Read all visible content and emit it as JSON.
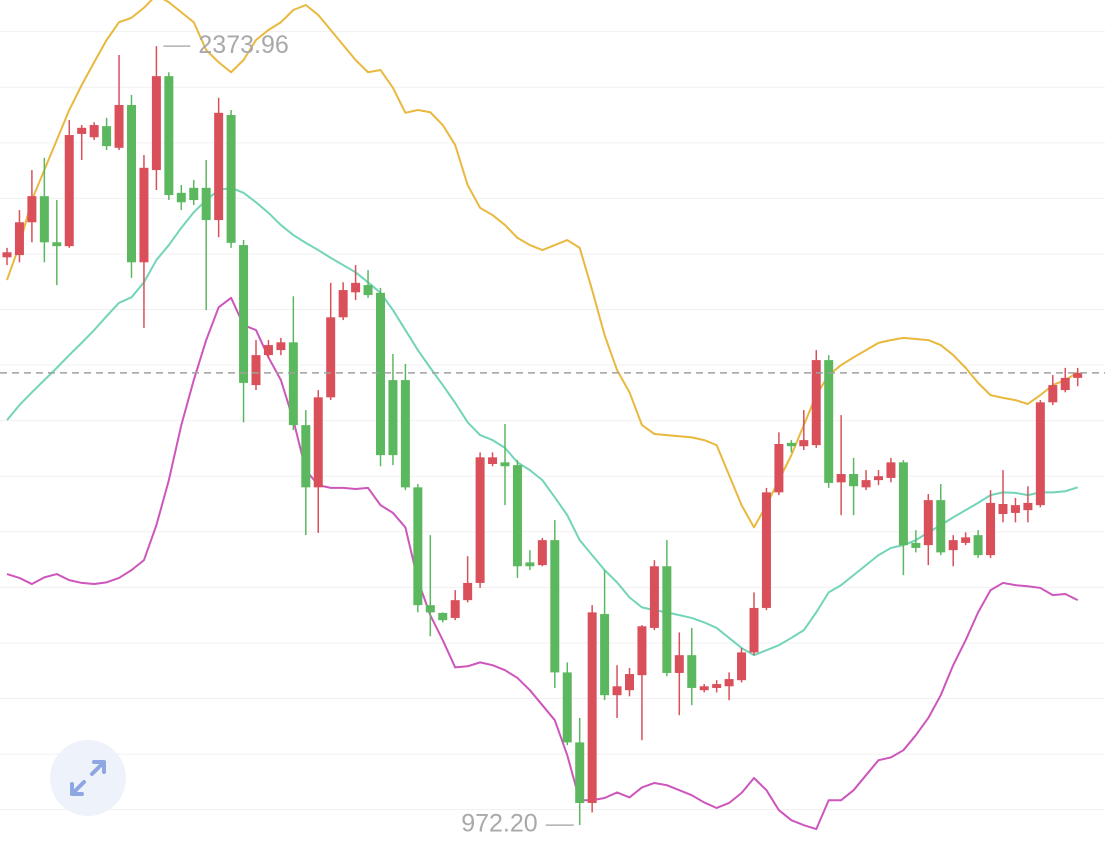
{
  "chart_data": {
    "type": "candlestick",
    "up_color": "#d9505a",
    "down_color": "#5cb85f",
    "ylim": [
      913,
      2457
    ],
    "gridlines": [
      1000,
      1100,
      1200,
      1300,
      1400,
      1500,
      1600,
      1700,
      1800,
      1900,
      2000,
      2100,
      2200,
      2300,
      2400
    ],
    "open": [
      1994,
      1998,
      2057,
      2104,
      2021,
      2014,
      2216,
      2210,
      2230,
      2191,
      2268,
      1985,
      2151,
      2320,
      2110,
      2119,
      2119,
      2061,
      2250,
      2016,
      1764,
      1818,
      1827,
      1841,
      1692,
      1580,
      1742,
      1886,
      1931,
      1944,
      1930,
      1773,
      1773,
      1580,
      1368,
      1354,
      1345,
      1377,
      1408,
      1622,
      1625,
      1620,
      1445,
      1440,
      1485,
      1247,
      1121,
      1012,
      1352,
      1206,
      1215,
      1242,
      1327,
      1438,
      1246,
      1278,
      1215,
      1219,
      1222,
      1233,
      1283,
      1363,
      1571,
      1660,
      1654,
      1656,
      1809,
      1589,
      1604,
      1580,
      1593,
      1597,
      1625,
      1480,
      1476,
      1557,
      1467,
      1480,
      1494,
      1458,
      1532,
      1534,
      1539,
      1548,
      1733,
      1755,
      1777
    ],
    "high": [
      2011,
      2079,
      2151,
      2173,
      2097,
      2241,
      2232,
      2237,
      2245,
      2358,
      2286,
      2178,
      2373.96,
      2327,
      2124,
      2133,
      2169,
      2281,
      2259,
      2025,
      1845,
      1845,
      1849,
      1924,
      1719,
      1755,
      1948,
      1949,
      1980,
      1971,
      1939,
      1820,
      1802,
      1586,
      1494,
      1355,
      1395,
      1456,
      1643,
      1643,
      1694,
      1629,
      1467,
      1489,
      1521,
      1265,
      1165,
      1368,
      1431,
      1260,
      1255,
      1332,
      1449,
      1485,
      1319,
      1327,
      1226,
      1233,
      1247,
      1291,
      1391,
      1579,
      1679,
      1665,
      1719,
      1827,
      1818,
      1710,
      1633,
      1611,
      1611,
      1633,
      1629,
      1503,
      1568,
      1586,
      1494,
      1499,
      1503,
      1575,
      1611,
      1561,
      1582,
      1737,
      1782,
      1795,
      1795
    ],
    "low": [
      1980,
      1985,
      2021,
      1985,
      1944,
      2011,
      2169,
      2205,
      2187,
      2187,
      1957,
      1867,
      2115,
      2097,
      2079,
      2088,
      1899,
      2030,
      2011,
      1697,
      1755,
      1813,
      1818,
      1683,
      1494,
      1498,
      1737,
      1881,
      1917,
      1921,
      1618,
      1620,
      1575,
      1355,
      1312,
      1337,
      1341,
      1373,
      1399,
      1618,
      1548,
      1417,
      1431,
      1438,
      1219,
      1116,
      972.2,
      995,
      1197,
      1165,
      1204,
      1125,
      1323,
      1240,
      1170,
      1188,
      1211,
      1211,
      1197,
      1229,
      1278,
      1359,
      1566,
      1643,
      1647,
      1651,
      1579,
      1530,
      1530,
      1575,
      1584,
      1589,
      1422,
      1463,
      1440,
      1458,
      1438,
      1476,
      1453,
      1453,
      1517,
      1517,
      1517,
      1544,
      1728,
      1751,
      1762
    ],
    "close": [
      2003,
      2057,
      2104,
      2021,
      2014,
      2214,
      2227,
      2232,
      2194,
      2268,
      1985,
      2155,
      2320,
      2106,
      2093,
      2097,
      2061,
      2254,
      2020,
      1768,
      1818,
      1836,
      1841,
      1692,
      1580,
      1742,
      1886,
      1935,
      1948,
      1926,
      1638,
      1638,
      1580,
      1368,
      1355,
      1341,
      1377,
      1408,
      1634,
      1634,
      1618,
      1438,
      1438,
      1485,
      1247,
      1121,
      1012,
      1355,
      1206,
      1222,
      1244,
      1330,
      1438,
      1246,
      1278,
      1219,
      1222,
      1226,
      1235,
      1283,
      1363,
      1571,
      1658,
      1654,
      1665,
      1809,
      1588,
      1604,
      1582,
      1593,
      1600,
      1625,
      1476,
      1471,
      1557,
      1463,
      1485,
      1490,
      1458,
      1552,
      1550,
      1548,
      1552,
      1733,
      1764,
      1777,
      1786
    ],
    "series": [
      {
        "color": "#e9b83e",
        "values": [
          1953,
          2016,
          2097,
          2151,
          2205,
          2259,
          2304,
          2345,
          2385,
          2417,
          2425,
          2443,
          2466,
          2453,
          2435,
          2417,
          2367,
          2345,
          2327,
          2349,
          2385,
          2403,
          2417,
          2439,
          2448,
          2430,
          2403,
          2376,
          2349,
          2327,
          2331,
          2299,
          2254,
          2259,
          2255,
          2232,
          2196,
          2124,
          2083,
          2070,
          2052,
          2029,
          2016,
          2007,
          2016,
          2025,
          2011,
          1935,
          1854,
          1791,
          1751,
          1692,
          1676,
          1674,
          1672,
          1670,
          1665,
          1656,
          1602,
          1548,
          1508,
          1548,
          1593,
          1638,
          1692,
          1746,
          1782,
          1800,
          1814,
          1827,
          1840,
          1845,
          1849,
          1847,
          1845,
          1836,
          1818,
          1795,
          1768,
          1746,
          1741,
          1737,
          1730,
          1746,
          1764,
          1773,
          1787
        ]
      },
      {
        "color": "#72d4b9",
        "values": [
          1701,
          1728,
          1751,
          1773,
          1795,
          1818,
          1840,
          1863,
          1888,
          1912,
          1922,
          1949,
          1989,
          2016,
          2047,
          2075,
          2097,
          2115,
          2119,
          2110,
          2093,
          2074,
          2052,
          2034,
          2020,
          2007,
          1993,
          1980,
          1967,
          1949,
          1930,
          1899,
          1863,
          1827,
          1795,
          1764,
          1732,
          1697,
          1674,
          1665,
          1651,
          1625,
          1611,
          1593,
          1562,
          1530,
          1485,
          1458,
          1431,
          1409,
          1382,
          1364,
          1359,
          1355,
          1350,
          1345,
          1337,
          1327,
          1309,
          1291,
          1278,
          1287,
          1296,
          1309,
          1323,
          1355,
          1391,
          1404,
          1422,
          1440,
          1458,
          1471,
          1476,
          1485,
          1499,
          1512,
          1526,
          1539,
          1552,
          1566,
          1571,
          1570,
          1566,
          1571,
          1571,
          1573,
          1580
        ]
      },
      {
        "color": "#cd56bd",
        "values": [
          1424,
          1417,
          1406,
          1418,
          1424,
          1413,
          1408,
          1406,
          1409,
          1417,
          1431,
          1449,
          1512,
          1593,
          1692,
          1773,
          1845,
          1904,
          1921,
          1872,
          1863,
          1814,
          1773,
          1701,
          1611,
          1584,
          1579,
          1579,
          1577,
          1579,
          1548,
          1534,
          1508,
          1413,
          1350,
          1305,
          1256,
          1258,
          1265,
          1260,
          1251,
          1237,
          1215,
          1188,
          1161,
          1098,
          1017,
          1017,
          1021,
          1031,
          1022,
          1040,
          1048,
          1044,
          1035,
          1026,
          1013,
          1003,
          1012,
          1030,
          1057,
          1035,
          999,
          981,
          972,
          965,
          1017,
          1017,
          1035,
          1062,
          1089,
          1094,
          1107,
          1134,
          1165,
          1206,
          1260,
          1305,
          1355,
          1395,
          1408,
          1404,
          1402,
          1399,
          1386,
          1388,
          1377
        ]
      }
    ],
    "max_annotation": 2373.96,
    "min_annotation": {
      "value": 972.2,
      "label": "972.20"
    }
  }
}
